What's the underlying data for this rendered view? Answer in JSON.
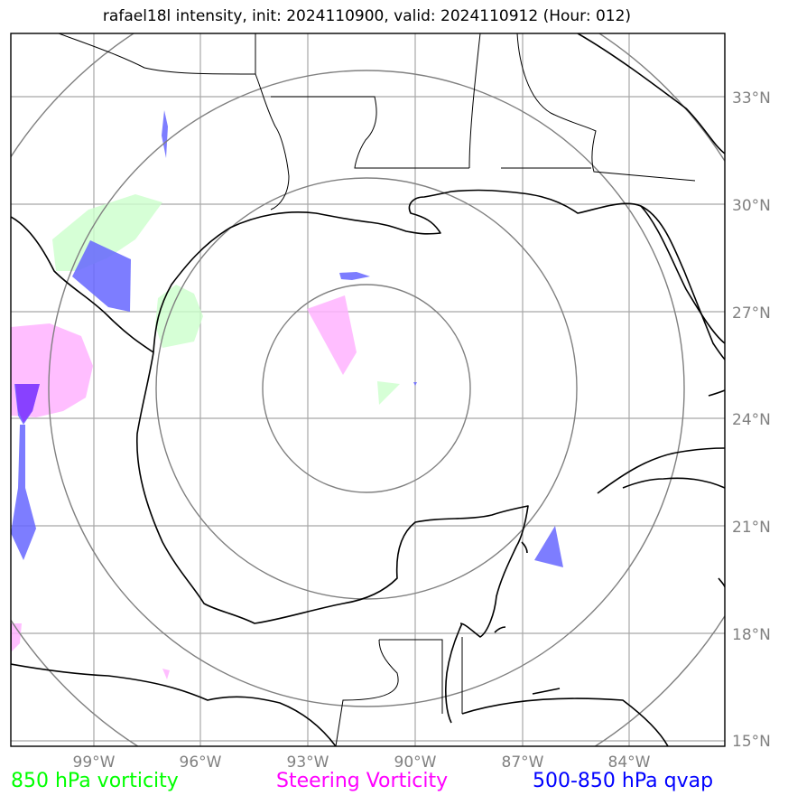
{
  "title": "rafael18l intensity, init: 2024110900, valid: 2024110912 (Hour: 012)",
  "lat_ticks": [
    "33°N",
    "30°N",
    "27°N",
    "24°N",
    "21°N",
    "18°N",
    "15°N"
  ],
  "lon_ticks": [
    "99°W",
    "96°W",
    "93°W",
    "90°W",
    "87°W",
    "84°W"
  ],
  "legend": {
    "vort850": {
      "label": "850 hPa vorticity",
      "color": "#00ff00"
    },
    "steering": {
      "label": "Steering Vorticity",
      "color": "#ff00ff"
    },
    "qvap": {
      "label": "500-850 hPa qvap",
      "color": "#0000ff"
    }
  },
  "colors": {
    "grid": "#a0a0a0",
    "range_rings": "#808080",
    "coastline": "#000000",
    "vort850_fill": "#ccffcc",
    "steering_fill": "#ffb3ff",
    "qvap_fill": "#6666ff"
  }
}
